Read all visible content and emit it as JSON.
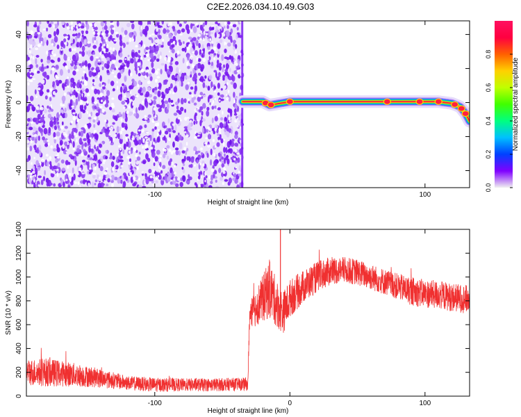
{
  "figure": {
    "title": "C2E2.2026.034.10.49.G03"
  },
  "chart_data": [
    {
      "type": "heatmap",
      "title": "",
      "xlabel": "Height of straight line (km)",
      "ylabel": "Frequency (Hz)",
      "xlim": [
        -195,
        133
      ],
      "ylim": [
        -50,
        48
      ],
      "x_ticks": [
        -100,
        0,
        100
      ],
      "x_tick_labels": [
        "-100",
        "",
        "100"
      ],
      "y_ticks": [
        40,
        20,
        0,
        -20,
        -40
      ],
      "y_tick_labels": [
        "40",
        "20",
        "0",
        "-20",
        "-40"
      ],
      "noise_region_x": [
        -195,
        -35
      ],
      "signal_track": {
        "description_points_x": [
          -35,
          -20,
          -15,
          0,
          30,
          60,
          90,
          110,
          120,
          126,
          130,
          133
        ],
        "description_points_freq": [
          0.5,
          0.5,
          -1.5,
          0.5,
          0.5,
          0.5,
          0.5,
          0.5,
          -0.5,
          -2.5,
          -6.5,
          -11
        ]
      },
      "colorbar": {
        "label": "Normalized spectral amplitude",
        "range": [
          0,
          1
        ],
        "ticks": [
          0.0,
          0.2,
          0.4,
          0.6,
          0.8
        ],
        "tick_labels": [
          "0.0",
          "0.2",
          "0.4",
          "0.6",
          "0.8"
        ],
        "colormap": "rainbow",
        "colors": [
          "#f0f0f0",
          "#8000ff",
          "#0040ff",
          "#00c0ff",
          "#00ff80",
          "#40ff00",
          "#c0ff00",
          "#ffd000",
          "#ff6000",
          "#ff0040",
          "#ff1060"
        ]
      },
      "grid": false
    },
    {
      "type": "line",
      "title": "",
      "xlabel": "Height of straight line (km)",
      "ylabel": "SNR (10 * v/v)",
      "xlim": [
        -195,
        133
      ],
      "ylim": [
        0,
        1400
      ],
      "x_ticks": [
        -100,
        0,
        100
      ],
      "x_tick_labels": [
        "-100",
        "0",
        "100"
      ],
      "y_ticks": [
        0,
        200,
        400,
        600,
        800,
        1000,
        1200,
        1400
      ],
      "y_tick_labels": [
        "0",
        "200",
        "400",
        "600",
        "800",
        "1000",
        "1200",
        "1400"
      ],
      "series": [
        {
          "color": "#f03030",
          "envelope_x": [
            -195,
            -180,
            -160,
            -140,
            -120,
            -100,
            -80,
            -60,
            -40,
            -31,
            -30,
            -25,
            -20,
            -15,
            -10,
            -5,
            0,
            10,
            20,
            30,
            40,
            50,
            60,
            70,
            80,
            90,
            100,
            110,
            120,
            133
          ],
          "envelope_mean": [
            200,
            200,
            180,
            150,
            110,
            95,
            95,
            95,
            100,
            100,
            650,
            750,
            820,
            900,
            780,
            700,
            820,
            920,
            1000,
            1050,
            1060,
            1040,
            1000,
            960,
            920,
            880,
            860,
            850,
            830,
            810
          ],
          "envelope_halfwidth": [
            110,
            120,
            100,
            80,
            60,
            60,
            55,
            55,
            55,
            55,
            120,
            160,
            200,
            250,
            200,
            180,
            160,
            140,
            130,
            120,
            110,
            110,
            110,
            110,
            110,
            120,
            120,
            120,
            120,
            120
          ],
          "spike_x": -7,
          "spike_y": 1400
        }
      ],
      "grid": false
    }
  ]
}
